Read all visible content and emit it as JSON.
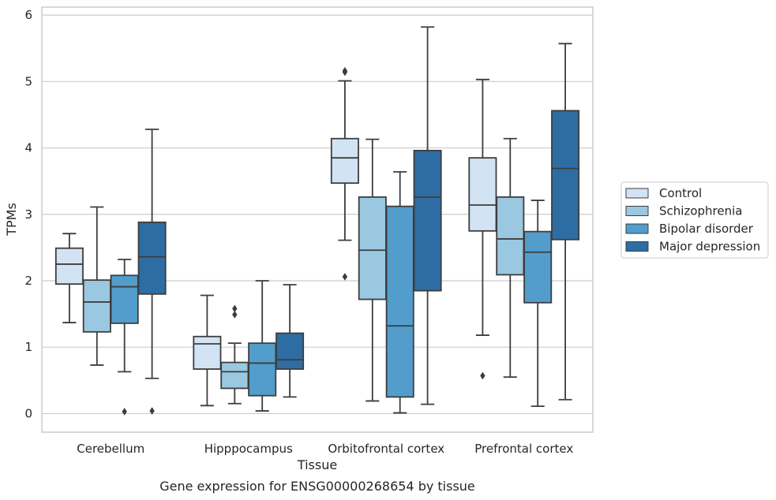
{
  "chart_data": {
    "type": "box",
    "title": "",
    "caption": "Gene expression for ENSG00000268654 by tissue",
    "xlabel": "Tissue",
    "ylabel": "TPMs",
    "ylim": [
      -0.28,
      6.12
    ],
    "yticks": [
      "0",
      "1",
      "2",
      "3",
      "4",
      "5",
      "6"
    ],
    "grid": "horizontal",
    "legend_position": "right",
    "categories": [
      "Cerebellum",
      "Hipppocampus",
      "Orbitofrontal cortex",
      "Prefrontal cortex"
    ],
    "series": [
      {
        "name": "Control",
        "color": "#d2e3f3",
        "boxes": [
          {
            "whisker_low": 1.37,
            "q1": 1.95,
            "median": 2.25,
            "q3": 2.49,
            "whisker_high": 2.71,
            "outliers": []
          },
          {
            "whisker_low": 0.12,
            "q1": 0.67,
            "median": 1.05,
            "q3": 1.16,
            "whisker_high": 1.78,
            "outliers": []
          },
          {
            "whisker_low": 2.61,
            "q1": 3.47,
            "median": 3.85,
            "q3": 4.14,
            "whisker_high": 5.01,
            "outliers": [
              5.16,
              5.14,
              2.06
            ]
          },
          {
            "whisker_low": 1.18,
            "q1": 2.75,
            "median": 3.14,
            "q3": 3.85,
            "whisker_high": 5.03,
            "outliers": [
              0.57
            ]
          }
        ]
      },
      {
        "name": "Schizophrenia",
        "color": "#9ac8e0",
        "boxes": [
          {
            "whisker_low": 0.73,
            "q1": 1.23,
            "median": 1.68,
            "q3": 2.01,
            "whisker_high": 3.11,
            "outliers": []
          },
          {
            "whisker_low": 0.15,
            "q1": 0.38,
            "median": 0.63,
            "q3": 0.77,
            "whisker_high": 1.06,
            "outliers": [
              1.58,
              1.49
            ]
          },
          {
            "whisker_low": 0.19,
            "q1": 1.72,
            "median": 2.46,
            "q3": 3.26,
            "whisker_high": 4.13,
            "outliers": []
          },
          {
            "whisker_low": 0.55,
            "q1": 2.09,
            "median": 2.63,
            "q3": 3.26,
            "whisker_high": 4.14,
            "outliers": []
          }
        ]
      },
      {
        "name": "Bipolar disorder",
        "color": "#529dcc",
        "boxes": [
          {
            "whisker_low": 0.63,
            "q1": 1.36,
            "median": 1.91,
            "q3": 2.08,
            "whisker_high": 2.32,
            "outliers": [
              0.03
            ]
          },
          {
            "whisker_low": 0.04,
            "q1": 0.27,
            "median": 0.76,
            "q3": 1.06,
            "whisker_high": 2.0,
            "outliers": []
          },
          {
            "whisker_low": 0.01,
            "q1": 0.25,
            "median": 1.32,
            "q3": 3.12,
            "whisker_high": 3.64,
            "outliers": []
          },
          {
            "whisker_low": 0.11,
            "q1": 1.67,
            "median": 2.43,
            "q3": 2.74,
            "whisker_high": 3.21,
            "outliers": []
          }
        ]
      },
      {
        "name": "Major depression",
        "color": "#2e6da4",
        "boxes": [
          {
            "whisker_low": 0.53,
            "q1": 1.8,
            "median": 2.36,
            "q3": 2.88,
            "whisker_high": 4.28,
            "outliers": [
              0.04
            ]
          },
          {
            "whisker_low": 0.25,
            "q1": 0.67,
            "median": 0.81,
            "q3": 1.21,
            "whisker_high": 1.94,
            "outliers": []
          },
          {
            "whisker_low": 0.14,
            "q1": 1.85,
            "median": 3.26,
            "q3": 3.96,
            "whisker_high": 5.82,
            "outliers": []
          },
          {
            "whisker_low": 0.21,
            "q1": 2.62,
            "median": 3.69,
            "q3": 4.56,
            "whisker_high": 5.57,
            "outliers": []
          }
        ]
      }
    ]
  }
}
